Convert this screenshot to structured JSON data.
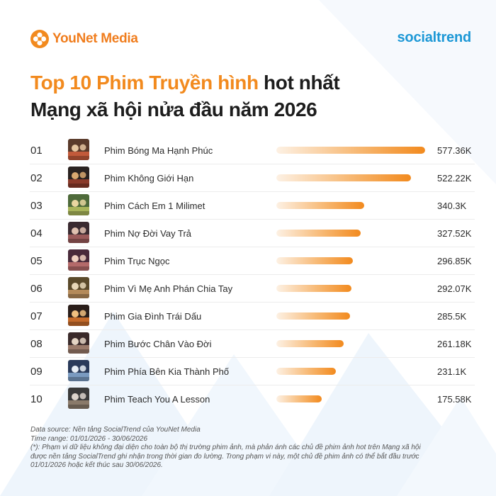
{
  "brand": {
    "left_name": "YouNet Media",
    "right_name": "socialtrend",
    "left_logo_icon": "younet-flower-icon"
  },
  "colors": {
    "accent": "#f28a1e",
    "brand_blue": "#1d98d6",
    "title_dark": "#1d1d1d"
  },
  "title": {
    "highlight": "Top 10 Phim Truyền hình",
    "rest": "hot nhất",
    "line2": "Mạng xã hội nửa đầu năm 2026"
  },
  "chart_data": {
    "type": "bar",
    "orientation": "horizontal",
    "title": "Top 10 Phim Truyền hình hot nhất Mạng xã hội nửa đầu năm 2026",
    "unit": "K",
    "ranks": [
      "01",
      "02",
      "03",
      "04",
      "05",
      "06",
      "07",
      "08",
      "09",
      "10"
    ],
    "categories": [
      "Phim Bóng Ma Hạnh Phúc",
      "Phim Không Giới Hạn",
      "Phim Cách Em 1 Milimet",
      "Phim Nợ Đời Vay Trả",
      "Phim Trục Ngọc",
      "Phim Vì Mẹ Anh Phán Chia Tay",
      "Phim Gia Đình Trái Dấu",
      "Phim Bước Chân Vào Đời",
      "Phim Phía Bên Kia Thành Phố",
      "Phim Teach You A Lesson"
    ],
    "values": [
      577.36,
      522.22,
      340.3,
      327.52,
      296.85,
      292.07,
      285.5,
      261.18,
      231.1,
      175.58
    ],
    "value_labels": [
      "577.36K",
      "522.22K",
      "340.3K",
      "327.52K",
      "296.85K",
      "292.07K",
      "285.5K",
      "261.18K",
      "231.1K",
      "175.58K"
    ],
    "xlim": [
      0,
      577.36
    ],
    "grid": false,
    "legend": "none"
  },
  "footnote": {
    "source": "Data source: Nền tảng SocialTrend của YouNet Media",
    "time_range": "Time range: 01/01/2026 - 30/06/2026",
    "note_line1": "(*): Phạm vi dữ liệu không đại diện cho toàn bộ thị trường phim ảnh, mà phản ánh các chủ đề phim ảnh hot trên Mạng xã hội",
    "note_line2": "được nền tảng SocialTrend ghi nhận trong thời gian đo lường. Trong phạm vi này, một chủ đề phim ảnh có thể bắt đầu trước",
    "note_line3": "01/01/2026 hoặc kết thúc sau 30/06/2026."
  }
}
